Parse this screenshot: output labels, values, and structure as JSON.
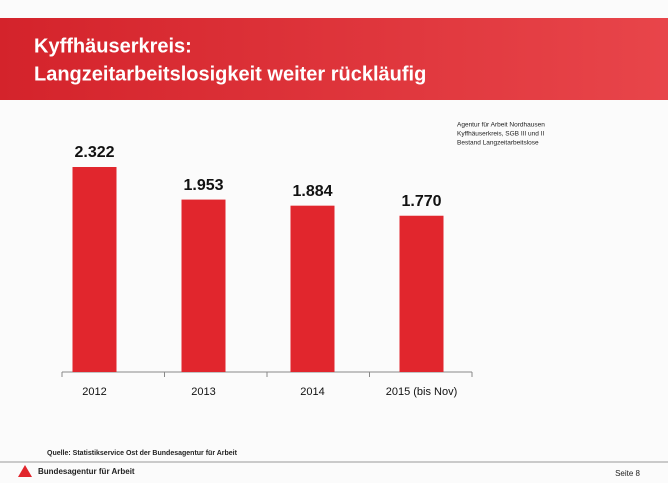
{
  "header": {
    "title_line1": "Kyffhäuserkreis:",
    "title_line2": "Langzeitarbeitslosigkeit weiter rückläufig"
  },
  "chart_data": {
    "type": "bar",
    "categories": [
      "2012",
      "2013",
      "2014",
      "2015 (bis Nov)"
    ],
    "values": [
      2322,
      1953,
      1884,
      1770
    ],
    "value_labels": [
      "2.322",
      "1.953",
      "1.884",
      "1.770"
    ],
    "color": "#e1262d",
    "note": [
      "Agentur für Arbeit Nordhausen",
      "Kyffhäuserkreis, SGB III und II",
      "Bestand Langzeitarbeitslose"
    ],
    "source": "Quelle: Statistikservice Ost der Bundesagentur für Arbeit"
  },
  "footer": {
    "logo_text": "Bundesagentur für Arbeit",
    "page": "Seite 8"
  }
}
